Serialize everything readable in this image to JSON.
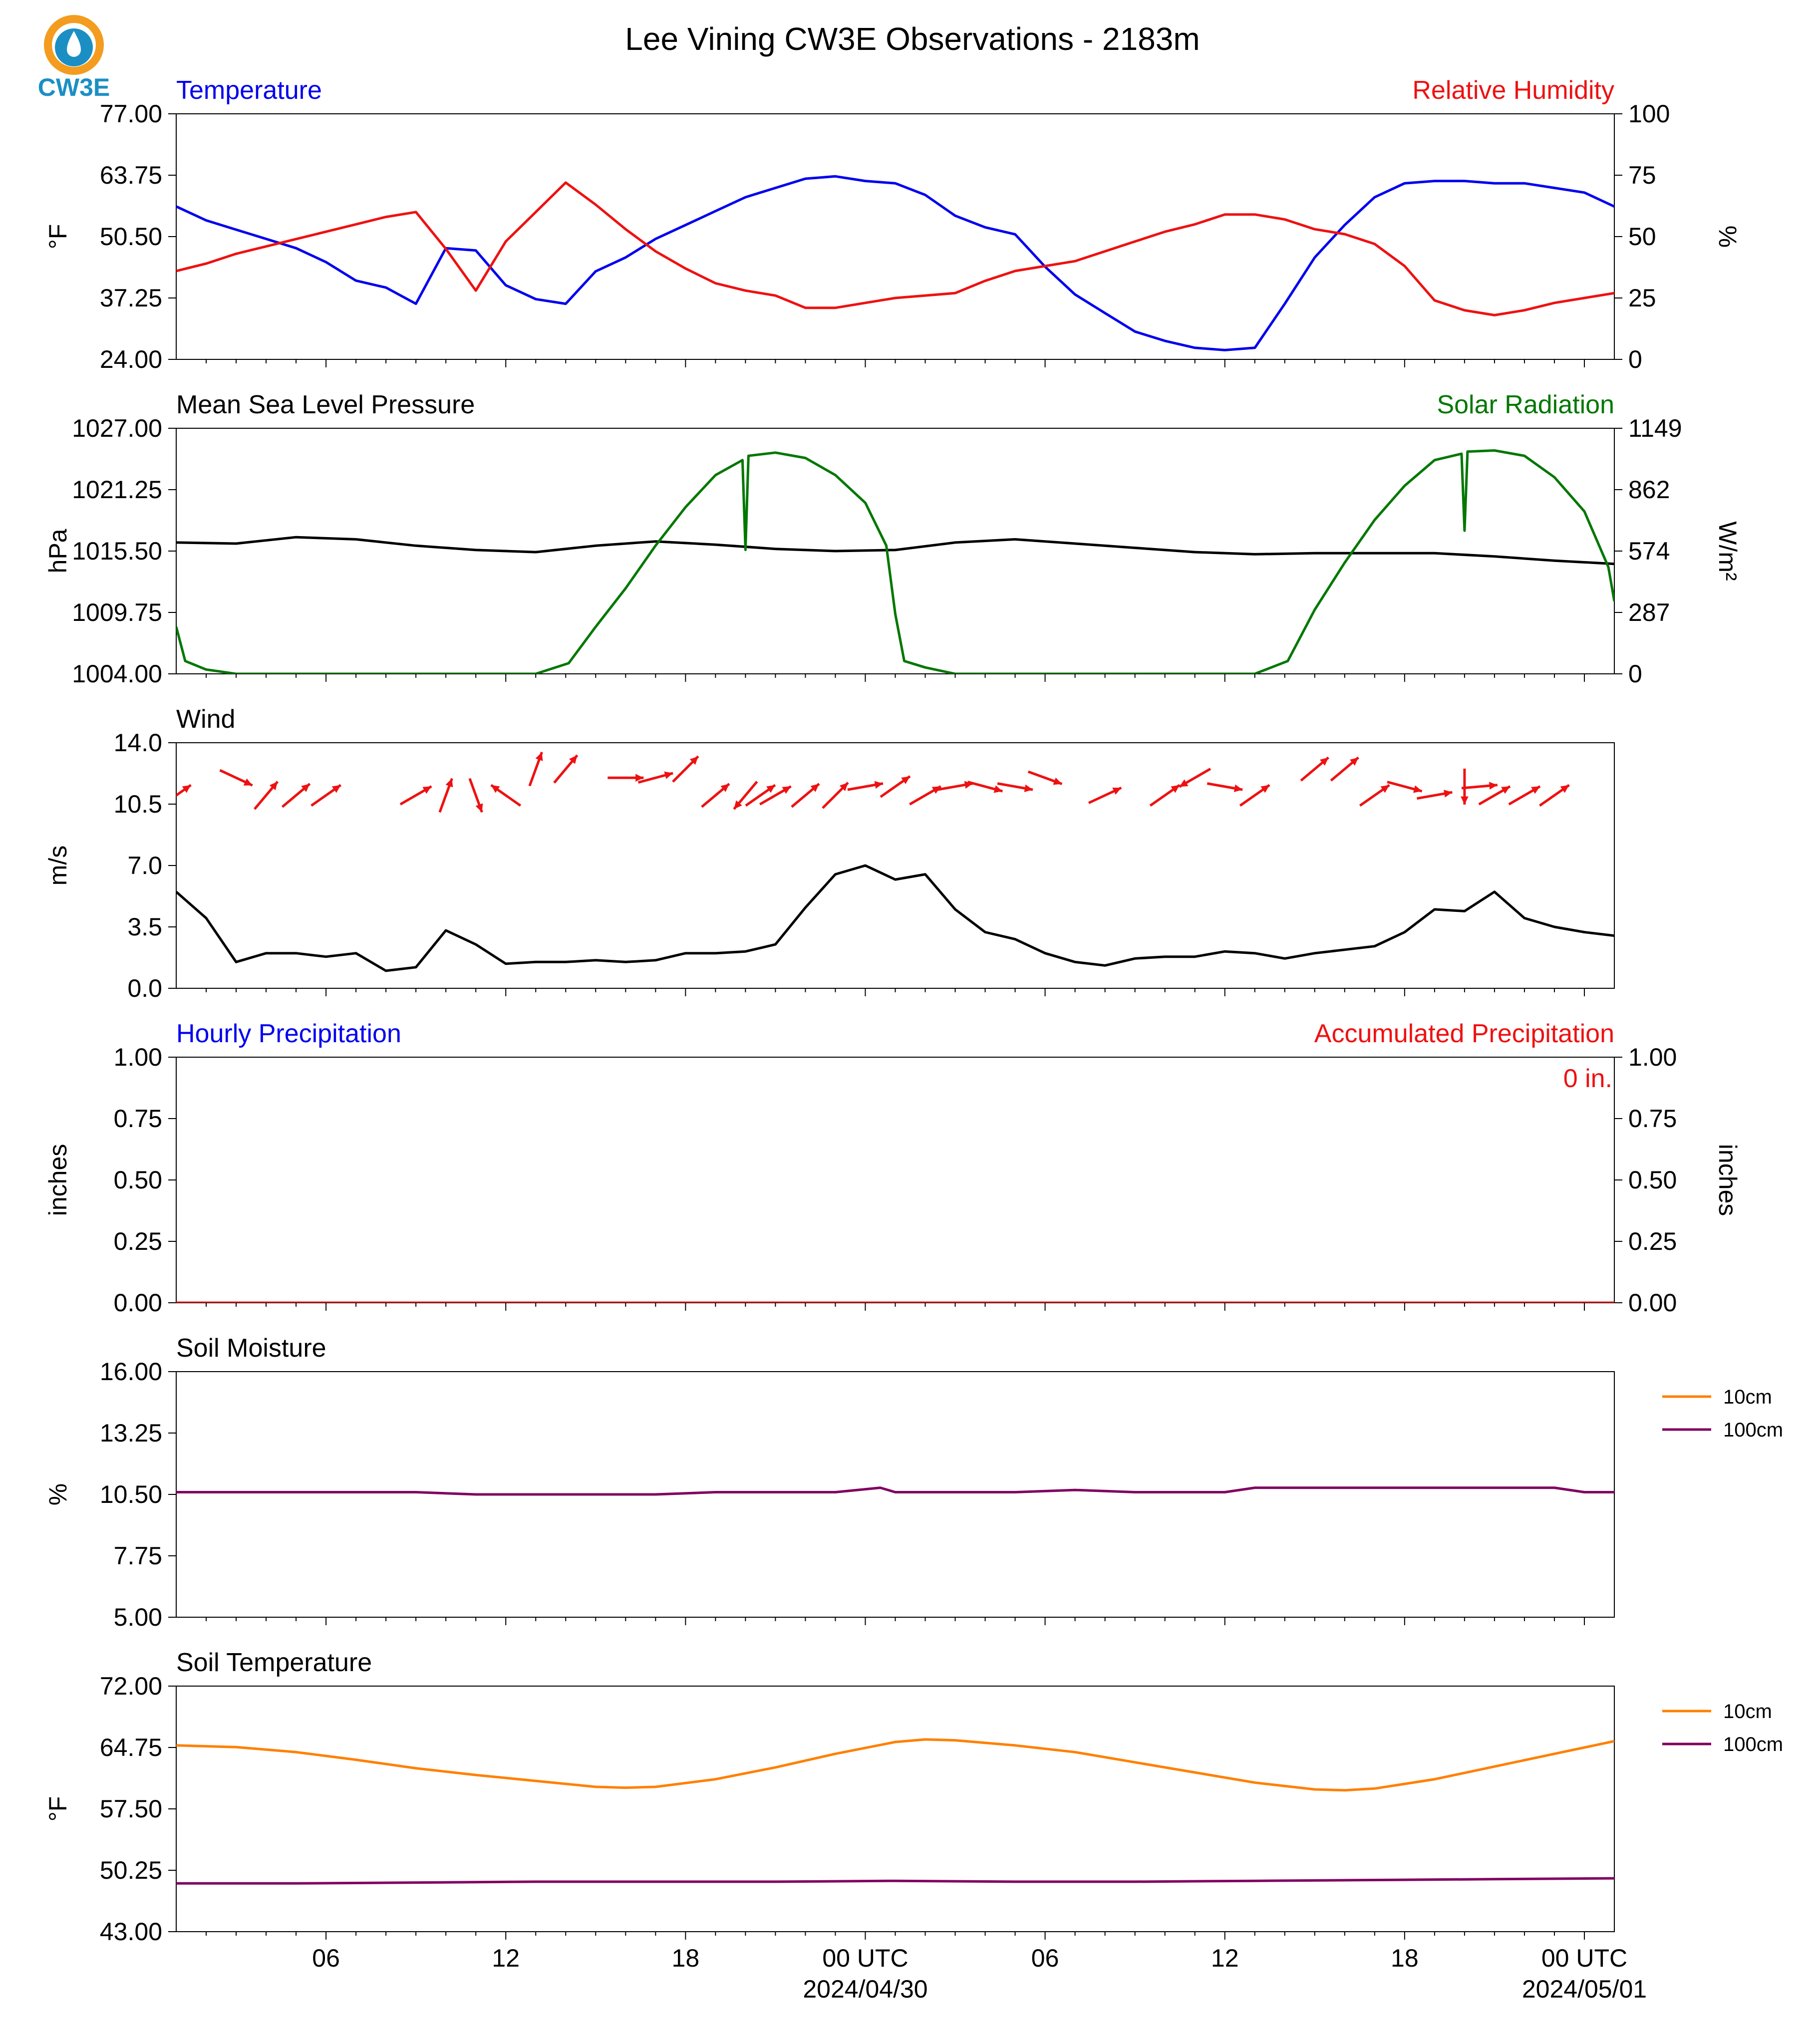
{
  "title": "Lee Vining CW3E Observations - 2183m",
  "logo": {
    "text": "CW3E",
    "color": "#1b8fc4",
    "accent": "#f39c1f"
  },
  "colors": {
    "blue": "#0000ee",
    "red": "#ee1111",
    "green": "#007700",
    "black": "#000000",
    "orange": "#ff8000",
    "purple": "#800060"
  },
  "x_axis": {
    "tick_labels": [
      "06",
      "12",
      "18",
      "00 UTC",
      "06",
      "12",
      "18",
      "00 UTC"
    ],
    "tick_hours": [
      6,
      12,
      18,
      24,
      30,
      36,
      42,
      48
    ],
    "date_labels": [
      {
        "label": "2024/04/30",
        "hour": 24
      },
      {
        "label": "2024/05/01",
        "hour": 48
      }
    ],
    "range_hours": [
      1,
      49
    ]
  },
  "chart_data": [
    {
      "type": "line",
      "left_title": "Temperature",
      "right_title": "Relative Humidity",
      "ylabel": "°F",
      "ylabel_right": "%",
      "ylim": [
        24,
        77
      ],
      "yticks": [
        "77.00",
        "63.75",
        "50.50",
        "37.25",
        "24.00"
      ],
      "ylim_right": [
        0,
        100
      ],
      "yticks_right": [
        "100",
        "75",
        "50",
        "25",
        "0"
      ],
      "series": [
        {
          "name": "Temperature",
          "axis": "left",
          "color": "#0000ee",
          "x": [
            1,
            2,
            3,
            4,
            5,
            6,
            7,
            8,
            9,
            10,
            11,
            12,
            13,
            14,
            15,
            16,
            17,
            18,
            19,
            20,
            21,
            22,
            23,
            24,
            25,
            26,
            27,
            28,
            29,
            30,
            31,
            32,
            33,
            34,
            35,
            36,
            37,
            38,
            39,
            40,
            41,
            42,
            43,
            44,
            45,
            46,
            47,
            48,
            49
          ],
          "y": [
            57,
            54,
            52,
            50,
            48,
            45,
            41,
            39.5,
            36,
            48,
            47.5,
            40,
            37,
            36,
            43,
            46,
            50,
            53,
            56,
            59,
            61,
            63,
            63.5,
            62.5,
            62,
            59.5,
            55,
            52.5,
            51,
            44,
            38,
            34,
            30,
            28,
            26.5,
            26,
            26.5,
            36,
            46,
            53,
            59,
            62,
            62.5,
            62.5,
            62,
            62,
            61,
            60,
            57
          ]
        },
        {
          "name": "Relative Humidity",
          "axis": "right",
          "color": "#ee1111",
          "x": [
            1,
            2,
            3,
            4,
            5,
            6,
            7,
            8,
            9,
            10,
            11,
            12,
            13,
            14,
            15,
            16,
            17,
            18,
            19,
            20,
            21,
            22,
            23,
            24,
            25,
            26,
            27,
            28,
            29,
            30,
            31,
            32,
            33,
            34,
            35,
            36,
            37,
            38,
            39,
            40,
            41,
            42,
            43,
            44,
            45,
            46,
            47,
            48,
            49
          ],
          "y": [
            36,
            39,
            43,
            46,
            49,
            52,
            55,
            58,
            60,
            45,
            28,
            48,
            60,
            72,
            63,
            53,
            44,
            37,
            31,
            28,
            26,
            21,
            21,
            23,
            25,
            26,
            27,
            32,
            36,
            38,
            40,
            44,
            48,
            52,
            55,
            59,
            59,
            57,
            53,
            51,
            47,
            38,
            24,
            20,
            18,
            20,
            23,
            25,
            27
          ]
        }
      ]
    },
    {
      "type": "line",
      "left_title": "Mean Sea Level Pressure",
      "right_title": "Solar Radiation",
      "ylabel": "hPa",
      "ylabel_right": "W/m²",
      "ylim": [
        1004,
        1027
      ],
      "yticks": [
        "1027.00",
        "1021.25",
        "1015.50",
        "1009.75",
        "1004.00"
      ],
      "ylim_right": [
        0,
        1149
      ],
      "yticks_right": [
        "1149",
        "862",
        "574",
        "287",
        "0"
      ],
      "series": [
        {
          "name": "Mean Sea Level Pressure",
          "axis": "left",
          "color": "#000000",
          "x": [
            1,
            3,
            5,
            7,
            9,
            11,
            13,
            15,
            17,
            19,
            21,
            23,
            25,
            27,
            29,
            31,
            33,
            35,
            37,
            39,
            41,
            43,
            45,
            47,
            49
          ],
          "y": [
            1016.3,
            1016.2,
            1016.8,
            1016.6,
            1016.0,
            1015.6,
            1015.4,
            1016.0,
            1016.4,
            1016.1,
            1015.7,
            1015.5,
            1015.6,
            1016.3,
            1016.6,
            1016.2,
            1015.8,
            1015.4,
            1015.2,
            1015.3,
            1015.3,
            1015.3,
            1015.0,
            1014.6,
            1014.3
          ]
        },
        {
          "name": "Solar Radiation",
          "axis": "right",
          "color": "#007700",
          "x": [
            1,
            1.3,
            2,
            3,
            13,
            14.1,
            15,
            16,
            17,
            18,
            19,
            19.9,
            20,
            20.1,
            21,
            22,
            23,
            24,
            24.7,
            25,
            25.3,
            26,
            27,
            28,
            37,
            38.1,
            39,
            40,
            41,
            42,
            43,
            43.9,
            44,
            44.1,
            45,
            46,
            47,
            48,
            48.8,
            49
          ],
          "y": [
            220,
            60,
            20,
            0,
            0,
            50,
            220,
            400,
            600,
            780,
            930,
            1000,
            580,
            1020,
            1035,
            1010,
            930,
            800,
            600,
            280,
            60,
            30,
            0,
            0,
            0,
            60,
            300,
            520,
            720,
            880,
            1000,
            1030,
            670,
            1040,
            1045,
            1020,
            920,
            760,
            500,
            340
          ]
        }
      ]
    },
    {
      "type": "line",
      "left_title": "Wind",
      "right_title": "",
      "ylabel": "m/s",
      "ylim": [
        0,
        14
      ],
      "yticks": [
        "14.0",
        "10.5",
        "7.0",
        "3.5",
        "0.0"
      ],
      "series": [
        {
          "name": "Wind Speed",
          "axis": "left",
          "color": "#000000",
          "x": [
            1,
            2,
            3,
            4,
            5,
            6,
            7,
            8,
            9,
            10,
            11,
            12,
            13,
            14,
            15,
            16,
            17,
            18,
            19,
            20,
            21,
            22,
            23,
            24,
            25,
            26,
            27,
            28,
            29,
            30,
            31,
            32,
            33,
            34,
            35,
            36,
            37,
            38,
            39,
            40,
            41,
            42,
            43,
            44,
            45,
            46,
            47,
            48,
            49
          ],
          "y": [
            5.5,
            4.0,
            1.5,
            2.0,
            2.0,
            1.8,
            2.0,
            1.0,
            1.2,
            3.3,
            2.5,
            1.4,
            1.5,
            1.5,
            1.6,
            1.5,
            1.6,
            2.0,
            2.0,
            2.1,
            2.5,
            4.6,
            6.5,
            7.0,
            6.2,
            6.5,
            4.5,
            3.2,
            2.8,
            2.0,
            1.5,
            1.3,
            1.7,
            1.8,
            1.8,
            2.1,
            2.0,
            1.7,
            2.0,
            2.2,
            2.4,
            3.2,
            4.5,
            4.4,
            5.5,
            4.0,
            3.5,
            3.2,
            3.0
          ]
        },
        {
          "name": "Wind Direction",
          "axis": "left",
          "color": "#ee1111",
          "type": "arrows",
          "x": [
            1,
            3,
            4,
            5,
            6,
            9,
            10,
            11,
            12,
            13,
            14,
            16,
            17,
            18,
            19,
            20,
            20.5,
            21,
            22,
            23,
            24,
            25,
            26,
            27,
            28,
            29,
            30,
            32,
            34,
            35,
            36,
            37,
            39,
            40,
            41,
            42,
            43,
            44,
            44.5,
            45,
            46,
            47
          ],
          "y": [
            11,
            12,
            11,
            11,
            11,
            11,
            11,
            11,
            11,
            12.5,
            12.5,
            12,
            12,
            12.5,
            11,
            11,
            11,
            11,
            11,
            11,
            11.5,
            11.5,
            11,
            11.5,
            11.5,
            11.5,
            12,
            11,
            11,
            12,
            11.5,
            11,
            12.5,
            12.5,
            11,
            11.5,
            11,
            11.5,
            11.5,
            11,
            11,
            11
          ],
          "angle_deg": [
            35,
            -25,
            50,
            40,
            35,
            30,
            70,
            -70,
            145,
            70,
            50,
            0,
            15,
            45,
            40,
            -130,
            35,
            30,
            40,
            45,
            10,
            35,
            30,
            10,
            -15,
            -10,
            -20,
            25,
            35,
            -150,
            -10,
            35,
            40,
            40,
            35,
            -15,
            10,
            270,
            5,
            30,
            30,
            35
          ]
        }
      ]
    },
    {
      "type": "line",
      "left_title": "Hourly Precipitation",
      "right_title": "Accumulated Precipitation",
      "annotation": "0 in.",
      "ylabel": "inches",
      "ylabel_right": "inches",
      "ylim": [
        0,
        1
      ],
      "yticks": [
        "1.00",
        "0.75",
        "0.50",
        "0.25",
        "0.00"
      ],
      "ylim_right": [
        0,
        1
      ],
      "yticks_right": [
        "1.00",
        "0.75",
        "0.50",
        "0.25",
        "0.00"
      ],
      "series": [
        {
          "name": "Hourly Precipitation",
          "axis": "left",
          "color": "#0000ee",
          "x": [
            1,
            49
          ],
          "y": [
            0,
            0
          ]
        },
        {
          "name": "Accumulated Precipitation",
          "axis": "right",
          "color": "#ee1111",
          "x": [
            1,
            49
          ],
          "y": [
            0,
            0
          ]
        }
      ]
    },
    {
      "type": "line",
      "left_title": "Soil Moisture",
      "right_title": "",
      "ylabel": "%",
      "ylim": [
        5,
        16
      ],
      "yticks": [
        "16.00",
        "13.25",
        "10.50",
        "7.75",
        "5.00"
      ],
      "legend": [
        "10cm",
        "100cm"
      ],
      "legend_position": "right",
      "series": [
        {
          "name": "100cm",
          "axis": "left",
          "color": "#800060",
          "x": [
            1,
            3,
            5,
            7,
            9,
            11,
            13,
            15,
            17,
            19,
            21,
            23,
            24.5,
            25,
            27,
            29,
            31,
            33,
            35,
            36,
            37,
            39,
            41,
            43,
            45,
            47,
            48,
            49
          ],
          "y": [
            10.6,
            10.6,
            10.6,
            10.6,
            10.6,
            10.5,
            10.5,
            10.5,
            10.5,
            10.6,
            10.6,
            10.6,
            10.8,
            10.6,
            10.6,
            10.6,
            10.7,
            10.6,
            10.6,
            10.6,
            10.8,
            10.8,
            10.8,
            10.8,
            10.8,
            10.8,
            10.6,
            10.6
          ]
        }
      ]
    },
    {
      "type": "line",
      "left_title": "Soil Temperature",
      "right_title": "",
      "ylabel": "°F",
      "ylim": [
        43,
        72
      ],
      "yticks": [
        "72.00",
        "64.75",
        "57.50",
        "50.25",
        "43.00"
      ],
      "legend": [
        "10cm",
        "100cm"
      ],
      "legend_position": "right",
      "series": [
        {
          "name": "10cm",
          "axis": "left",
          "color": "#ff8000",
          "x": [
            1,
            3,
            5,
            7,
            9,
            11,
            13,
            15,
            16,
            17,
            19,
            21,
            23,
            25,
            26,
            27,
            29,
            31,
            33,
            35,
            37,
            39,
            40,
            41,
            43,
            45,
            47,
            49
          ],
          "y": [
            65.0,
            64.8,
            64.2,
            63.3,
            62.3,
            61.5,
            60.8,
            60.1,
            60.0,
            60.1,
            61.0,
            62.4,
            64.0,
            65.4,
            65.7,
            65.6,
            65.0,
            64.2,
            63.0,
            61.8,
            60.6,
            59.8,
            59.7,
            59.9,
            61.0,
            62.5,
            64.0,
            65.5
          ]
        },
        {
          "name": "100cm",
          "axis": "left",
          "color": "#800060",
          "x": [
            1,
            5,
            9,
            13,
            17,
            21,
            25,
            29,
            33,
            37,
            41,
            45,
            49
          ],
          "y": [
            48.7,
            48.7,
            48.8,
            48.9,
            48.9,
            48.9,
            49.0,
            48.9,
            48.9,
            49.0,
            49.1,
            49.2,
            49.3
          ]
        }
      ]
    }
  ]
}
